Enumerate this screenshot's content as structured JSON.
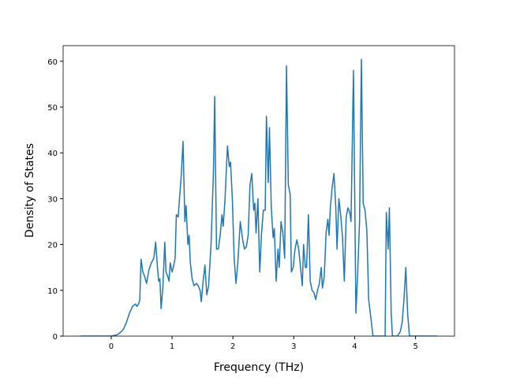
{
  "chart_data": {
    "type": "line",
    "x_label": "Frequency (THz)",
    "y_label": "Density of States",
    "xlim": [
      -0.79,
      5.64
    ],
    "ylim": [
      0,
      63.4
    ],
    "xticks": [
      0,
      1,
      2,
      3,
      4,
      5
    ],
    "yticks": [
      0,
      10,
      20,
      30,
      40,
      50,
      60
    ],
    "x": [
      -0.5,
      0,
      0.1,
      0.15,
      0.2,
      0.25,
      0.3,
      0.35,
      0.4,
      0.42,
      0.45,
      0.47,
      0.49,
      0.52,
      0.55,
      0.58,
      0.62,
      0.66,
      0.7,
      0.73,
      0.76,
      0.78,
      0.8,
      0.82,
      0.85,
      0.88,
      0.9,
      0.93,
      0.95,
      0.97,
      1.0,
      1.02,
      1.05,
      1.07,
      1.1,
      1.15,
      1.18,
      1.21,
      1.23,
      1.26,
      1.28,
      1.3,
      1.33,
      1.36,
      1.4,
      1.43,
      1.46,
      1.48,
      1.51,
      1.54,
      1.57,
      1.6,
      1.64,
      1.68,
      1.7,
      1.73,
      1.76,
      1.79,
      1.82,
      1.84,
      1.87,
      1.91,
      1.94,
      1.96,
      1.99,
      2.02,
      2.05,
      2.08,
      2.12,
      2.16,
      2.19,
      2.22,
      2.25,
      2.28,
      2.31,
      2.34,
      2.36,
      2.38,
      2.41,
      2.44,
      2.47,
      2.5,
      2.53,
      2.55,
      2.58,
      2.6,
      2.63,
      2.66,
      2.68,
      2.71,
      2.74,
      2.76,
      2.79,
      2.82,
      2.85,
      2.88,
      2.91,
      2.94,
      2.96,
      2.99,
      3.02,
      3.05,
      3.08,
      3.11,
      3.14,
      3.16,
      3.19,
      3.21,
      3.24,
      3.27,
      3.3,
      3.33,
      3.36,
      3.39,
      3.42,
      3.45,
      3.47,
      3.5,
      3.53,
      3.56,
      3.58,
      3.6,
      3.63,
      3.66,
      3.69,
      3.71,
      3.74,
      3.77,
      3.8,
      3.83,
      3.86,
      3.89,
      3.92,
      3.94,
      3.98,
      4.02,
      4.05,
      4.08,
      4.11,
      4.14,
      4.17,
      4.2,
      4.23,
      4.27,
      4.3,
      4.5,
      4.52,
      4.55,
      4.57,
      4.6,
      4.62,
      4.7,
      4.75,
      4.78,
      4.81,
      4.84,
      4.87,
      4.9,
      5.35
    ],
    "series": [
      {
        "color": "#1f77b4",
        "values": [
          0,
          0,
          0.3,
          0.8,
          1.5,
          3,
          5,
          6.5,
          7,
          6.5,
          7,
          8,
          16.8,
          14,
          13,
          11.5,
          14.5,
          16,
          17,
          20.5,
          15,
          12,
          12.5,
          6,
          11,
          20.5,
          14,
          13,
          12,
          16,
          14,
          15,
          17,
          26.5,
          26,
          35,
          42.5,
          25,
          28.5,
          20,
          22,
          16,
          12.5,
          11,
          11.5,
          11,
          10,
          7.5,
          12,
          15.5,
          9,
          11,
          20,
          36,
          52.3,
          19,
          19,
          22,
          26.5,
          24,
          30,
          41.5,
          37,
          38,
          30,
          17,
          11.5,
          16,
          25,
          21,
          19,
          19.5,
          22,
          33,
          35.5,
          27.5,
          29,
          22.5,
          30,
          14,
          22.5,
          27.5,
          27.5,
          48,
          33.5,
          45.5,
          28,
          21.5,
          23.5,
          12,
          19,
          15,
          25,
          22.5,
          17,
          59,
          33,
          31,
          14,
          15,
          19,
          21,
          19,
          15,
          11,
          20,
          15,
          15,
          26.5,
          12,
          10,
          9.5,
          8,
          10,
          11.5,
          15,
          10.5,
          13,
          22.5,
          25.5,
          22,
          28,
          32.5,
          35.5,
          28,
          19,
          30,
          26.5,
          21.5,
          12,
          26,
          28,
          27,
          25,
          58,
          5,
          14,
          25,
          60.4,
          29,
          27.5,
          23,
          8,
          3.5,
          0,
          0,
          27,
          19,
          28,
          5,
          0,
          0,
          1,
          3,
          8,
          15,
          5,
          0,
          0
        ]
      }
    ]
  }
}
